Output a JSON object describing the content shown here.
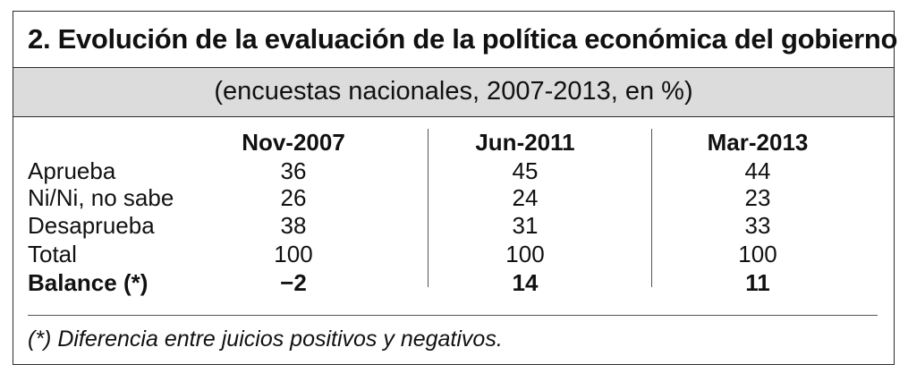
{
  "table": {
    "title": "2. Evolución de la evaluación de la política económica del gobierno",
    "subtitle": "(encuestas nacionales, 2007-2013, en %)",
    "columns": [
      "Nov-2007",
      "Jun-2011",
      "Mar-2013"
    ],
    "rows": [
      {
        "label": "Aprueba",
        "values": [
          "36",
          "45",
          "44"
        ]
      },
      {
        "label": "Ni/Ni, no sabe",
        "values": [
          "26",
          "24",
          "23"
        ]
      },
      {
        "label": "Desaprueba",
        "values": [
          "38",
          "31",
          "33"
        ]
      },
      {
        "label": "Total",
        "values": [
          "100",
          "100",
          "100"
        ]
      },
      {
        "label": "Balance (*)",
        "values": [
          "−2",
          "14",
          "11"
        ]
      }
    ],
    "footnote": "(*) Diferencia entre juicios positivos y negativos."
  }
}
